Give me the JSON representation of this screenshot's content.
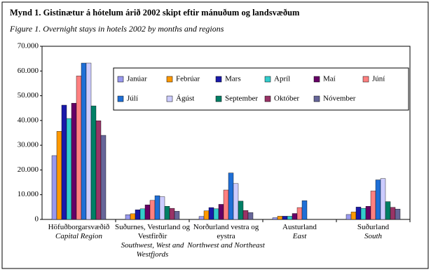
{
  "chart_data": {
    "type": "bar",
    "title": "Mynd 1. Gistinætur á hótelum árið 2002 skipt eftir mánuðum og landsvæðum",
    "subtitle": "Figure 1.  Overnight stays in hotels 2002 by months and regions",
    "categories": [
      "Höfuðborgarsvæðið",
      "Suðurnes, Vesturland og Vestfirðir",
      "Norðurland vestra og eystra",
      "Austurland",
      "Suðurland"
    ],
    "categories_en": [
      "Capital Region",
      "Southwest, West and Westfjords",
      "Northwest and Northeast",
      "East",
      "South"
    ],
    "series": [
      {
        "name": "Janúar",
        "color": "#9999ee",
        "values": [
          25800,
          1900,
          1200,
          700,
          2000
        ]
      },
      {
        "name": "Febrúar",
        "color": "#ff9900",
        "values": [
          35600,
          2300,
          3500,
          1300,
          3000
        ]
      },
      {
        "name": "Mars",
        "color": "#1a1aaa",
        "values": [
          46200,
          3900,
          4800,
          1300,
          5000
        ]
      },
      {
        "name": "Apríl",
        "color": "#33cccc",
        "values": [
          40800,
          4300,
          4300,
          1300,
          4500
        ]
      },
      {
        "name": "Maí",
        "color": "#660066",
        "values": [
          47000,
          5900,
          6100,
          2400,
          5300
        ]
      },
      {
        "name": "Júní",
        "color": "#ff8080",
        "values": [
          58000,
          7700,
          11900,
          4800,
          11500
        ]
      },
      {
        "name": "Júlí",
        "color": "#1f6fd6",
        "values": [
          63200,
          9600,
          18800,
          7600,
          16000
        ]
      },
      {
        "name": "Ágúst",
        "color": "#ccccff",
        "values": [
          63200,
          9200,
          14500,
          null,
          16500
        ]
      },
      {
        "name": "September",
        "color": "#008066",
        "values": [
          45900,
          5300,
          7400,
          null,
          7200
        ]
      },
      {
        "name": "Október",
        "color": "#993366",
        "values": [
          39900,
          4500,
          3600,
          null,
          4900
        ]
      },
      {
        "name": "Nóvember",
        "color": "#666699",
        "values": [
          34000,
          3300,
          2800,
          null,
          4200
        ]
      }
    ],
    "ylim": [
      0,
      70000
    ],
    "yticks": [
      0,
      {
        "value": 10000,
        "label": "10.000"
      },
      {
        "value": 20000,
        "label": "20.000"
      },
      {
        "value": 30000,
        "label": "30.000"
      },
      {
        "value": 40000,
        "label": "40.000"
      },
      {
        "value": 50000,
        "label": "50.000"
      },
      {
        "value": 60000,
        "label": "60.000"
      },
      {
        "value": 70000,
        "label": "70.000"
      }
    ],
    "grid": false
  }
}
